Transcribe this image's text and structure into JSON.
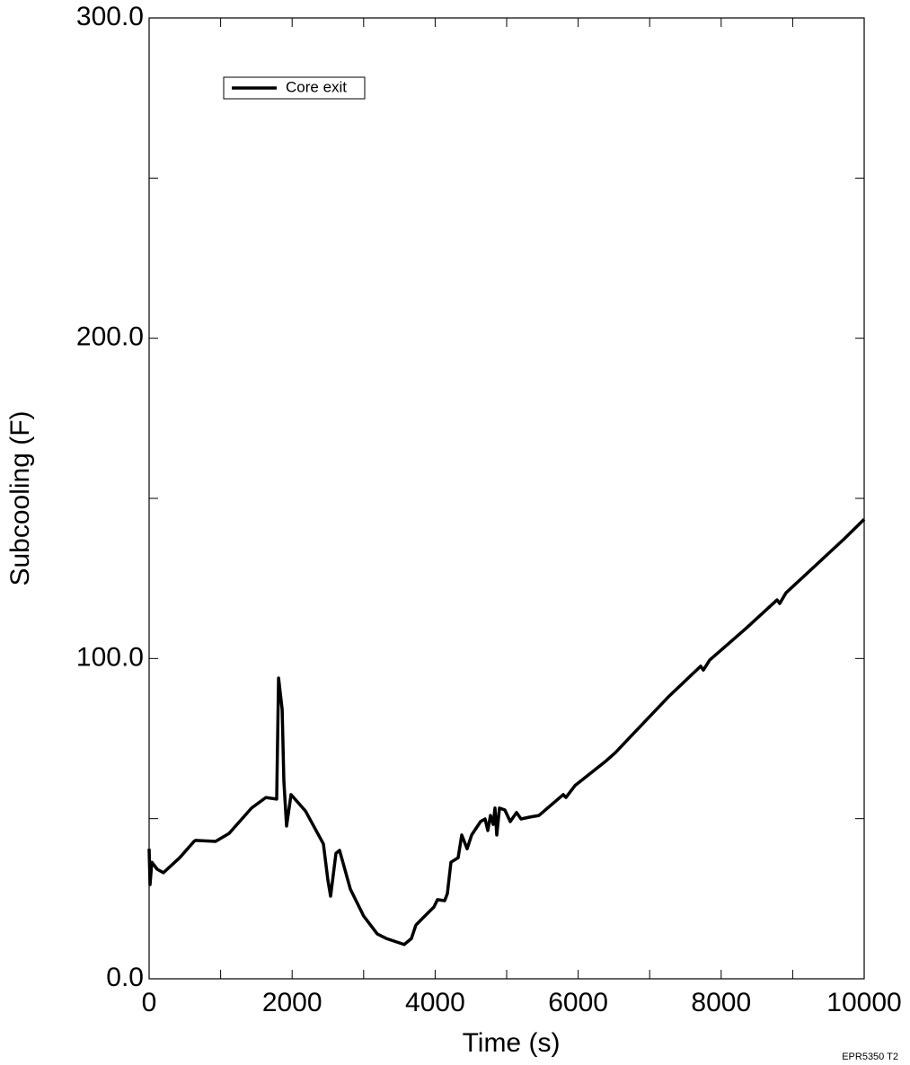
{
  "chart_data": {
    "type": "line",
    "xlabel": "Time (s)",
    "ylabel": "Subcooling (F)",
    "footnote": "EPR5350 T2",
    "xlim": [
      0,
      10000
    ],
    "xticks": [
      0,
      2000,
      4000,
      6000,
      8000,
      10000
    ],
    "ylim": [
      0,
      300
    ],
    "yticks": [
      {
        "value": 0,
        "label": "0.0"
      },
      {
        "value": 100,
        "label": "100.0"
      },
      {
        "value": 200,
        "label": "200.0"
      },
      {
        "value": 300,
        "label": "300.0"
      }
    ],
    "legend": "upper left",
    "series": [
      {
        "name": "Core exit",
        "color": "#000000",
        "x": [
          0,
          12,
          38,
          113,
          200,
          427,
          628,
          650,
          930,
          1118,
          1432,
          1633,
          1784,
          1810,
          1860,
          1884,
          1922,
          1985,
          2186,
          2437,
          2500,
          2538,
          2613,
          2663,
          2814,
          3000,
          3191,
          3317,
          3505,
          3568,
          3668,
          3731,
          3882,
          3982,
          4033,
          4133,
          4171,
          4221,
          4322,
          4372,
          4447,
          4510,
          4636,
          4698,
          4736,
          4774,
          4812,
          4837,
          4862,
          4899,
          4975,
          5050,
          5138,
          5201,
          5327,
          5452,
          5791,
          5829,
          5955,
          6395,
          6520,
          6771,
          7274,
          7714,
          7751,
          7839,
          8342,
          8781,
          8819,
          8907,
          9724,
          10000
        ],
        "values": [
          40.6,
          29.4,
          36.4,
          34.2,
          33.1,
          37.8,
          42.9,
          43.2,
          42.9,
          45.4,
          53.3,
          56.6,
          56.1,
          93.9,
          84.1,
          61.7,
          47.7,
          57.5,
          52.4,
          42.1,
          30.8,
          25.8,
          39.2,
          40.1,
          28.0,
          19.6,
          14.0,
          12.6,
          11.2,
          10.7,
          12.6,
          16.8,
          20.2,
          22.4,
          24.7,
          24.4,
          26.6,
          36.4,
          37.8,
          44.9,
          40.6,
          44.9,
          49.1,
          49.9,
          46.3,
          51.0,
          48.2,
          53.3,
          44.9,
          53.3,
          52.7,
          49.1,
          51.9,
          49.9,
          50.5,
          51.0,
          57.5,
          56.6,
          60.3,
          68.1,
          70.6,
          76.5,
          88.3,
          97.6,
          96.4,
          99.5,
          109.3,
          118.3,
          117.2,
          120.5,
          137.4,
          143.5
        ]
      }
    ]
  }
}
